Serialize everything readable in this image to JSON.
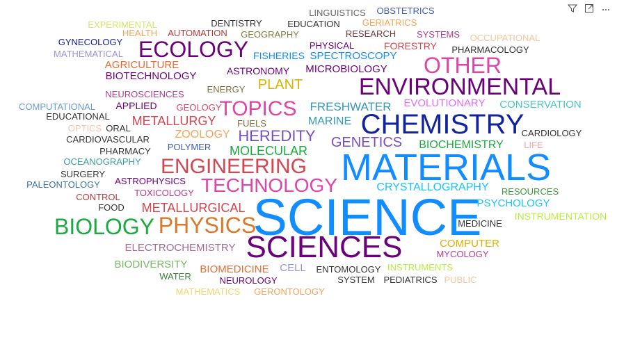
{
  "toolbar": {
    "filter_icon": "filter-icon",
    "focus_icon": "focus-mode-icon",
    "more_icon": "more-options-icon"
  },
  "words": [
    {
      "text": "SCIENCE",
      "color": "#118DFF"
    },
    {
      "text": "MATERIALS",
      "color": "#118DFF"
    },
    {
      "text": "CHEMISTRY",
      "color": "#12239E"
    },
    {
      "text": "SCIENCES",
      "color": "#6B007B"
    },
    {
      "text": "ENVIRONMENTAL",
      "color": "#6B007B"
    },
    {
      "text": "ECOLOGY",
      "color": "#6B007B"
    },
    {
      "text": "OTHER",
      "color": "#E044A7"
    },
    {
      "text": "BIOLOGY",
      "color": "#1AAB40"
    },
    {
      "text": "PHYSICS",
      "color": "#D9792D"
    },
    {
      "text": "ENGINEERING",
      "color": "#D64550"
    },
    {
      "text": "TECHNOLOGY",
      "color": "#E044A7"
    },
    {
      "text": "TOPICS",
      "color": "#E044A7"
    },
    {
      "text": "HEREDITY",
      "color": "#744EC2"
    },
    {
      "text": "GENETICS",
      "color": "#744EC2"
    },
    {
      "text": "MOLECULAR",
      "color": "#1AAB40"
    },
    {
      "text": "METALLURGY",
      "color": "#D64550"
    },
    {
      "text": "PLANT",
      "color": "#D9B300"
    },
    {
      "text": "ZOOLOGY",
      "color": "#F5A55A"
    },
    {
      "text": "FRESHWATER",
      "color": "#3599B8"
    },
    {
      "text": "MARINE",
      "color": "#3599B8"
    },
    {
      "text": "CRYSTALLOGRAPHY",
      "color": "#15C6F4"
    },
    {
      "text": "METALLURGICAL",
      "color": "#D64550"
    },
    {
      "text": "BIOCHEMISTRY",
      "color": "#1AAB40"
    },
    {
      "text": "EVOLUTIONARY",
      "color": "#E66BFF"
    },
    {
      "text": "CONSERVATION",
      "color": "#4AC5BB"
    },
    {
      "text": "PSYCHOLOGY",
      "color": "#15C6F4"
    },
    {
      "text": "ELECTROCHEMISTRY",
      "color": "#A66999"
    },
    {
      "text": "COMPUTER",
      "color": "#D9B300"
    },
    {
      "text": "BIODIVERSITY",
      "color": "#73B761"
    },
    {
      "text": "BIOMEDICINE",
      "color": "#E66C37"
    },
    {
      "text": "CELL",
      "color": "#9996D9"
    },
    {
      "text": "INSTRUMENTATION",
      "color": "#B7EF3D"
    },
    {
      "text": "AGRICULTURE",
      "color": "#E66C37"
    },
    {
      "text": "BIOTECHNOLOGY",
      "color": "#6B007B"
    },
    {
      "text": "ASTRONOMY",
      "color": "#6B007B"
    },
    {
      "text": "MICROBIOLOGY",
      "color": "#6B007B"
    },
    {
      "text": "SPECTROSCOPY",
      "color": "#118DFF"
    },
    {
      "text": "FISHERIES",
      "color": "#118DFF"
    },
    {
      "text": "FORESTRY",
      "color": "#D64550"
    },
    {
      "text": "PHARMACOLOGY",
      "color": "#333333"
    },
    {
      "text": "OCCUPATIONAL",
      "color": "#F5C69B"
    },
    {
      "text": "SYSTEMS",
      "color": "#B23C8E"
    },
    {
      "text": "RESEARCH",
      "color": "#6B3F3F"
    },
    {
      "text": "PHYSICAL",
      "color": "#6B007B"
    },
    {
      "text": "GERIATRICS",
      "color": "#F5A55A"
    },
    {
      "text": "EDUCATION",
      "color": "#333333"
    },
    {
      "text": "GEOGRAPHY",
      "color": "#7F7F3F"
    },
    {
      "text": "DENTISTRY",
      "color": "#333333"
    },
    {
      "text": "AUTOMATION",
      "color": "#B23C3C"
    },
    {
      "text": "HEALTH",
      "color": "#F5A55A"
    },
    {
      "text": "EXPERIMENTAL",
      "color": "#D4E864"
    },
    {
      "text": "GYNECOLOGY",
      "color": "#12239E"
    },
    {
      "text": "MATHEMATICAL",
      "color": "#9996D9"
    },
    {
      "text": "LINGUISTICS",
      "color": "#666666"
    },
    {
      "text": "OBSTETRICS",
      "color": "#3E59C0"
    },
    {
      "text": "NEUROSCIENCES",
      "color": "#B23C8E"
    },
    {
      "text": "ENERGY",
      "color": "#7F6F3F"
    },
    {
      "text": "APPLIED",
      "color": "#6B007B"
    },
    {
      "text": "GEOLOGY",
      "color": "#E04466"
    },
    {
      "text": "COMPUTATIONAL",
      "color": "#6B9BD9"
    },
    {
      "text": "EDUCATIONAL",
      "color": "#333333"
    },
    {
      "text": "OPTICS",
      "color": "#F5C6B0"
    },
    {
      "text": "ORAL",
      "color": "#333333"
    },
    {
      "text": "FUELS",
      "color": "#7F6F3F"
    },
    {
      "text": "CARDIOVASCULAR",
      "color": "#333333"
    },
    {
      "text": "POLYMER",
      "color": "#3E59C0"
    },
    {
      "text": "PHARMACY",
      "color": "#333333"
    },
    {
      "text": "OCEANOGRAPHY",
      "color": "#3E9B9B"
    },
    {
      "text": "SURGERY",
      "color": "#333333"
    },
    {
      "text": "ASTROPHYSICS",
      "color": "#6B007B"
    },
    {
      "text": "PALEONTOLOGY",
      "color": "#3E73A8"
    },
    {
      "text": "TOXICOLOGY",
      "color": "#B23C8E"
    },
    {
      "text": "CONTROL",
      "color": "#B23C3C"
    },
    {
      "text": "FOOD",
      "color": "#333333"
    },
    {
      "text": "CARDIOLOGY",
      "color": "#333333"
    },
    {
      "text": "LIFE",
      "color": "#F5A5A5"
    },
    {
      "text": "RESOURCES",
      "color": "#3E9B3E"
    },
    {
      "text": "MEDICINE",
      "color": "#333333"
    },
    {
      "text": "MYCOLOGY",
      "color": "#B23C8E"
    },
    {
      "text": "INSTRUMENTS",
      "color": "#B7EF3D"
    },
    {
      "text": "ENTOMOLOGY",
      "color": "#333333"
    },
    {
      "text": "WATER",
      "color": "#3E7F3E"
    },
    {
      "text": "NEUROLOGY",
      "color": "#6B007B"
    },
    {
      "text": "SYSTEM",
      "color": "#333333"
    },
    {
      "text": "PEDIATRICS",
      "color": "#333333"
    },
    {
      "text": "PUBLIC",
      "color": "#F5C69B"
    },
    {
      "text": "MATHEMATICS",
      "color": "#F5D56B"
    },
    {
      "text": "GERONTOLOGY",
      "color": "#F5A55A"
    }
  ]
}
